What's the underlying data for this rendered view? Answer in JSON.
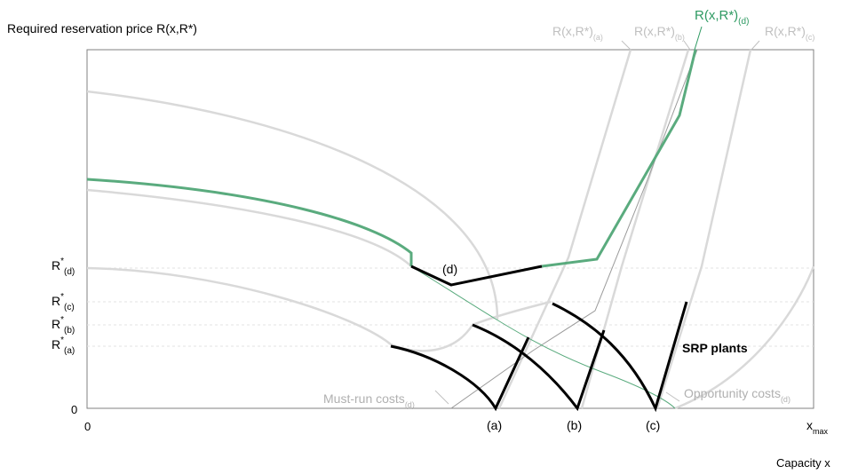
{
  "y_axis_title": "Required reservation price R(x,R*)",
  "x_axis_title": "Capacity x",
  "x_origin": "0",
  "x_max": {
    "base": "x",
    "sub": "max"
  },
  "y_zero": "0",
  "y_levels": [
    {
      "sup": "*",
      "sub": "(d)"
    },
    {
      "sup": "*",
      "sub": "(c)"
    },
    {
      "sup": "*",
      "sub": "(b)"
    },
    {
      "sup": "*",
      "sub": "(a)"
    }
  ],
  "curve_labels": [
    {
      "base": "R(x,R*)",
      "sub": "(a)",
      "color": "#c0c0c0"
    },
    {
      "base": "R(x,R*)",
      "sub": "(b)",
      "color": "#c0c0c0"
    },
    {
      "base": "R(x,R*)",
      "sub": "(d)",
      "color": "#2e9a62"
    },
    {
      "base": "R(x,R*)",
      "sub": "(c)",
      "color": "#c0c0c0"
    }
  ],
  "point_labels": [
    "(a)",
    "(b)",
    "(c)",
    "(d)"
  ],
  "srp_label": "SRP plants",
  "must_run": {
    "base": "Must-run costs",
    "sub": "(d)"
  },
  "opportunity": {
    "base": "Opportunity costs",
    "sub": "(d)"
  },
  "colors": {
    "highlight": "#5aab7e",
    "highlight_text": "#2e9a62",
    "muted": "#d9d9d9",
    "muted_text": "#b0b0b0",
    "plants": "#000000",
    "frame": "#808080"
  }
}
